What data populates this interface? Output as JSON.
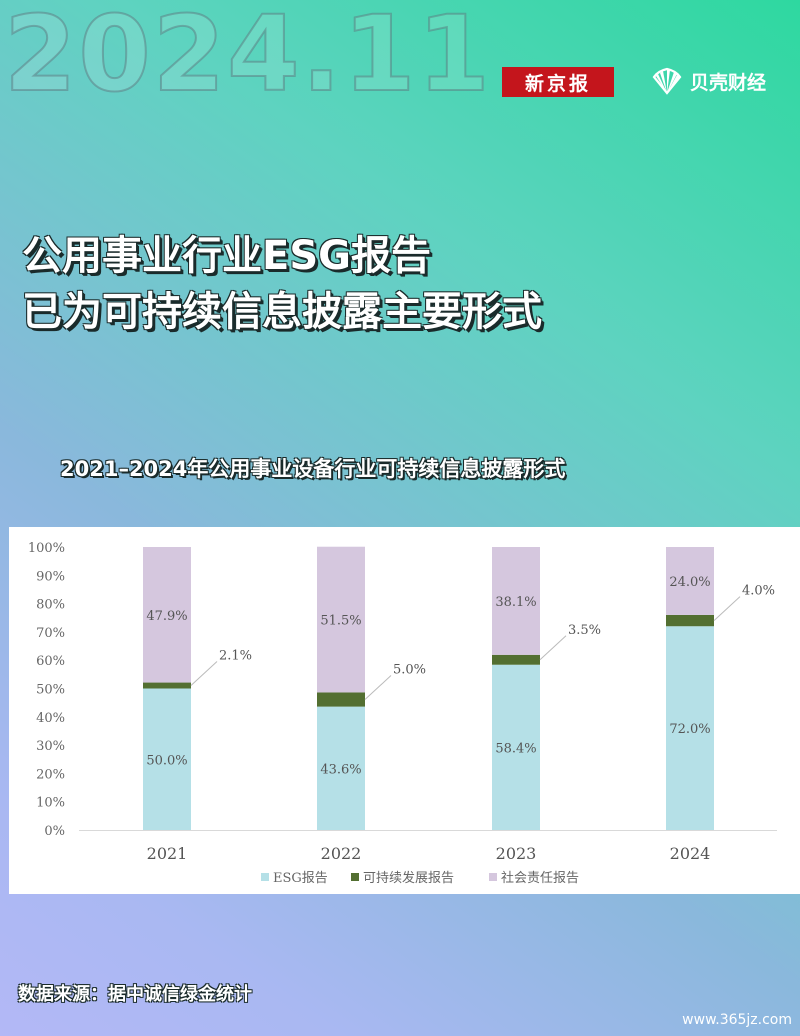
{
  "header": {
    "bg_date": "2024.11",
    "brand_xjb": "新京报",
    "brand_bk": "贝壳财经"
  },
  "headline": {
    "line1": "公用事业行业ESG报告",
    "line2": "已为可持续信息披露主要形式"
  },
  "chart_title": "2021–2024年公用事业设备行业可持续信息披露形式",
  "source": "数据来源：据中诚信绿金统计",
  "watermark": "www.365jz.com",
  "colors": {
    "esg": "#b5e0e7",
    "sustainability": "#536f31",
    "social": "#d5c7de"
  },
  "chart_data": {
    "type": "bar",
    "stacked": true,
    "categories": [
      "2021",
      "2022",
      "2023",
      "2024"
    ],
    "series": [
      {
        "name": "ESG报告",
        "values": [
          50.0,
          43.6,
          58.4,
          72.0
        ],
        "labels": [
          "50.0%",
          "43.6%",
          "58.4%",
          "72.0%"
        ]
      },
      {
        "name": "可持续发展报告",
        "values": [
          2.1,
          5.0,
          3.5,
          4.0
        ],
        "labels": [
          "2.1%",
          "5.0%",
          "3.5%",
          "4.0%"
        ]
      },
      {
        "name": "社会责任报告",
        "values": [
          47.9,
          51.5,
          38.1,
          24.0
        ],
        "labels": [
          "47.9%",
          "51.5%",
          "38.1%",
          "24.0%"
        ]
      }
    ],
    "ylim": [
      0,
      100
    ],
    "yticks": [
      "0%",
      "10%",
      "20%",
      "30%",
      "40%",
      "50%",
      "60%",
      "70%",
      "80%",
      "90%",
      "100%"
    ],
    "grid": false,
    "legend": "bottom"
  }
}
